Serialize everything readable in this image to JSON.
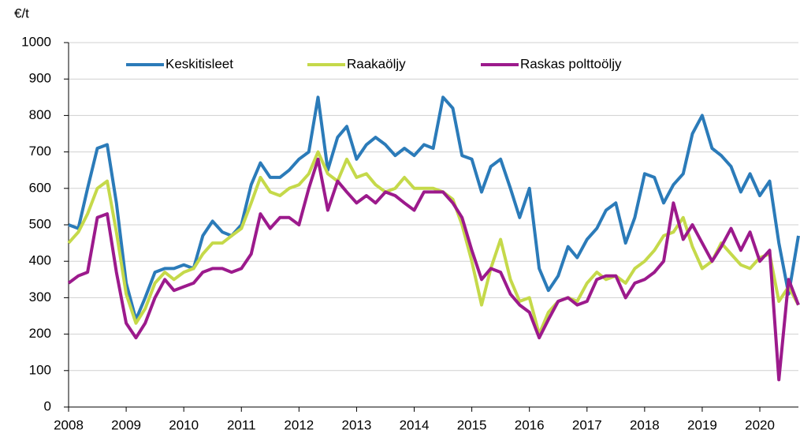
{
  "chart_data": {
    "type": "line",
    "ylabel": "€/t",
    "x": [
      2008,
      2008.17,
      2008.33,
      2008.5,
      2008.67,
      2008.83,
      2009,
      2009.17,
      2009.33,
      2009.5,
      2009.67,
      2009.83,
      2010,
      2010.17,
      2010.33,
      2010.5,
      2010.67,
      2010.83,
      2011,
      2011.17,
      2011.33,
      2011.5,
      2011.67,
      2011.83,
      2012,
      2012.17,
      2012.33,
      2012.5,
      2012.67,
      2012.83,
      2013,
      2013.17,
      2013.33,
      2013.5,
      2013.67,
      2013.83,
      2014,
      2014.17,
      2014.33,
      2014.5,
      2014.67,
      2014.83,
      2015,
      2015.17,
      2015.33,
      2015.5,
      2015.67,
      2015.83,
      2016,
      2016.17,
      2016.33,
      2016.5,
      2016.67,
      2016.83,
      2017,
      2017.17,
      2017.33,
      2017.5,
      2017.67,
      2017.83,
      2018,
      2018.17,
      2018.33,
      2018.5,
      2018.67,
      2018.83,
      2019,
      2019.17,
      2019.33,
      2019.5,
      2019.67,
      2019.83,
      2020,
      2020.17,
      2020.33,
      2020.5,
      2020.67
    ],
    "series": [
      {
        "name": "Keskitisleet",
        "color": "#2b7bb9",
        "values": [
          500,
          490,
          600,
          710,
          720,
          560,
          340,
          240,
          300,
          370,
          380,
          380,
          390,
          380,
          470,
          510,
          480,
          470,
          500,
          610,
          670,
          630,
          630,
          650,
          680,
          700,
          850,
          650,
          740,
          770,
          680,
          720,
          740,
          720,
          690,
          710,
          690,
          720,
          710,
          850,
          820,
          690,
          680,
          590,
          660,
          680,
          600,
          520,
          600,
          380,
          320,
          360,
          440,
          410,
          460,
          490,
          540,
          560,
          450,
          520,
          640,
          630,
          560,
          610,
          640,
          750,
          800,
          710,
          690,
          660,
          590,
          640,
          580,
          620,
          450,
          310,
          470
        ]
      },
      {
        "name": "Raakaöljy",
        "color": "#c5d94a",
        "values": [
          450,
          480,
          530,
          600,
          620,
          480,
          310,
          230,
          270,
          340,
          370,
          350,
          370,
          380,
          420,
          450,
          450,
          470,
          490,
          560,
          630,
          590,
          580,
          600,
          610,
          640,
          700,
          640,
          620,
          680,
          630,
          640,
          610,
          590,
          600,
          630,
          600,
          600,
          600,
          590,
          570,
          500,
          400,
          280,
          380,
          460,
          350,
          290,
          300,
          200,
          260,
          290,
          300,
          290,
          340,
          370,
          350,
          360,
          340,
          380,
          400,
          430,
          470,
          480,
          520,
          440,
          380,
          400,
          450,
          420,
          390,
          380,
          410,
          420,
          290,
          330,
          280
        ]
      },
      {
        "name": "Raskas polttoöljy",
        "color": "#9c1a8c",
        "values": [
          340,
          360,
          370,
          520,
          530,
          370,
          230,
          190,
          230,
          300,
          350,
          320,
          330,
          340,
          370,
          380,
          380,
          370,
          380,
          420,
          530,
          490,
          520,
          520,
          500,
          600,
          680,
          540,
          620,
          590,
          560,
          580,
          560,
          590,
          580,
          560,
          540,
          590,
          590,
          590,
          560,
          520,
          430,
          350,
          380,
          370,
          310,
          280,
          260,
          190,
          240,
          290,
          300,
          280,
          290,
          350,
          360,
          360,
          300,
          340,
          350,
          370,
          400,
          560,
          460,
          500,
          450,
          400,
          440,
          490,
          430,
          480,
          400,
          430,
          75,
          350,
          280
        ]
      }
    ],
    "xlim": [
      2008,
      2020.67
    ],
    "xticks": [
      2008,
      2009,
      2010,
      2011,
      2012,
      2013,
      2014,
      2015,
      2016,
      2017,
      2018,
      2019,
      2020
    ],
    "ylim": [
      0,
      1000
    ],
    "yticks": [
      0,
      100,
      200,
      300,
      400,
      500,
      600,
      700,
      800,
      900,
      1000
    ],
    "grid": true,
    "legend": "top"
  }
}
